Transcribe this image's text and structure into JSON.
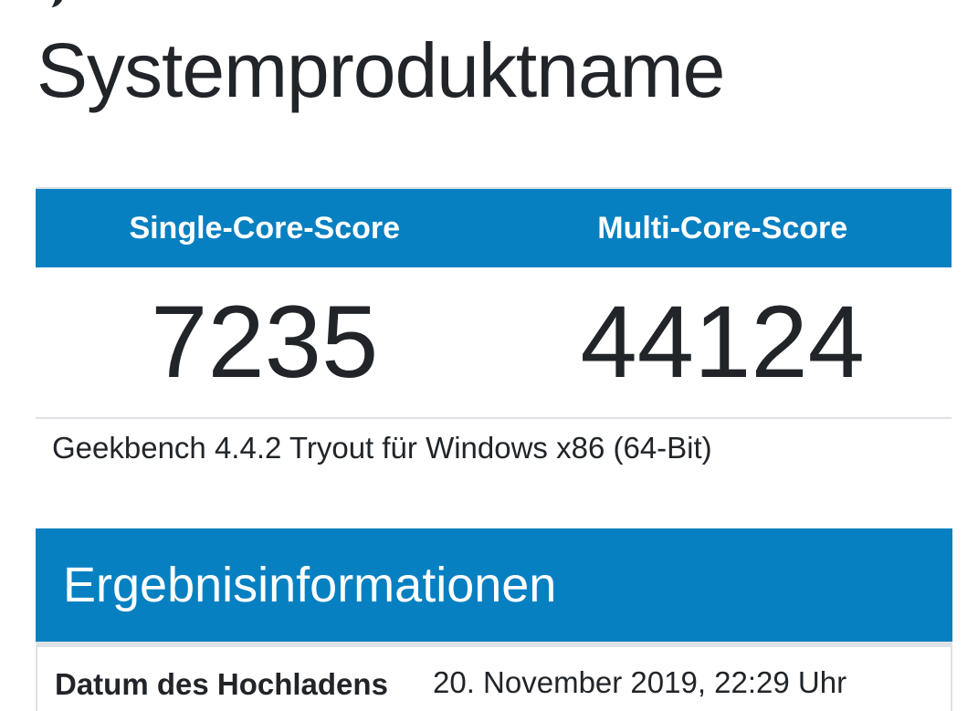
{
  "header": {
    "title": "Systemproduktname"
  },
  "scores": {
    "single_label": "Single-Core-Score",
    "multi_label": "Multi-Core-Score",
    "single_value": "7235",
    "multi_value": "44124"
  },
  "version": "Geekbench 4.4.2 Tryout für Windows x86 (64-Bit)",
  "section": {
    "title": "Ergebnisinformationen",
    "rows": [
      {
        "key": "Datum des Hochladens",
        "value": "20. November 2019, 22:29 Uhr"
      }
    ]
  },
  "colors": {
    "accent": "#0780c1",
    "text": "#212529",
    "border": "#dee2e6"
  }
}
